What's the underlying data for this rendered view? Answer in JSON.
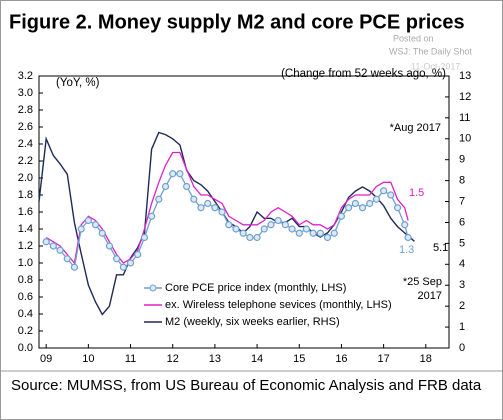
{
  "chart_data": {
    "type": "line",
    "title": "Figure 2. Money supply M2 and core PCE prices",
    "watermark": [
      "Posted on",
      "WSJ: The Daily Shot",
      "11-Oct-2017"
    ],
    "annotations": [
      "(YoY, %)",
      "(Change from 52 weeks ago, %)",
      "*Aug 2017",
      "1.5",
      "1.3",
      "5.1",
      "*25 Sep",
      "2017"
    ],
    "source": "Source: MUMSS, from US Bureau of Economic Analysis and FRB data",
    "xlim": [
      2008.83,
      2018.55
    ],
    "xticks": [
      {
        "value": 2009,
        "label": "09"
      },
      {
        "value": 2010,
        "label": "10"
      },
      {
        "value": 2011,
        "label": "11"
      },
      {
        "value": 2012,
        "label": "12"
      },
      {
        "value": 2013,
        "label": "13"
      },
      {
        "value": 2014,
        "label": "14"
      },
      {
        "value": 2015,
        "label": "15"
      },
      {
        "value": 2016,
        "label": "16"
      },
      {
        "value": 2017,
        "label": "17"
      },
      {
        "value": 2018,
        "label": "18"
      }
    ],
    "ylim": [
      0,
      3.2
    ],
    "yticks": [
      {
        "value": 0,
        "label": "0.0"
      },
      {
        "value": 0.2,
        "label": "0.2"
      },
      {
        "value": 0.4,
        "label": "0.4"
      },
      {
        "value": 0.6,
        "label": "0.6"
      },
      {
        "value": 0.8,
        "label": "0.8"
      },
      {
        "value": 1,
        "label": "1.0"
      },
      {
        "value": 1.2,
        "label": "1.2"
      },
      {
        "value": 1.4,
        "label": "1.4"
      },
      {
        "value": 1.6,
        "label": "1.6"
      },
      {
        "value": 1.8,
        "label": "1.8"
      },
      {
        "value": 2,
        "label": "2.0"
      },
      {
        "value": 2.2,
        "label": "2.2"
      },
      {
        "value": 2.4,
        "label": "2.4"
      },
      {
        "value": 2.6,
        "label": "2.6"
      },
      {
        "value": 2.8,
        "label": "2.8"
      },
      {
        "value": 3,
        "label": "3.0"
      },
      {
        "value": 3.2,
        "label": "3.2"
      }
    ],
    "y2lim": [
      0,
      13
    ],
    "y2ticks": [
      0,
      1,
      2,
      3,
      4,
      5,
      6,
      7,
      8,
      9,
      10,
      11,
      12,
      13
    ],
    "series": [
      {
        "name": "Core PCE price index (monthly, LHS)",
        "color": "#6f9fcf",
        "marker": "circle",
        "x": [
          2009.0,
          2009.17,
          2009.33,
          2009.5,
          2009.67,
          2009.83,
          2010.0,
          2010.17,
          2010.33,
          2010.5,
          2010.67,
          2010.83,
          2011.0,
          2011.17,
          2011.33,
          2011.5,
          2011.67,
          2011.83,
          2012.0,
          2012.17,
          2012.33,
          2012.5,
          2012.67,
          2012.83,
          2013.0,
          2013.17,
          2013.33,
          2013.5,
          2013.67,
          2013.83,
          2014.0,
          2014.17,
          2014.33,
          2014.5,
          2014.67,
          2014.83,
          2015.0,
          2015.17,
          2015.33,
          2015.5,
          2015.67,
          2015.83,
          2016.0,
          2016.17,
          2016.33,
          2016.5,
          2016.67,
          2016.83,
          2017.0,
          2017.17,
          2017.33,
          2017.5,
          2017.58
        ],
        "values": [
          1.25,
          1.2,
          1.15,
          1.05,
          0.95,
          1.4,
          1.5,
          1.45,
          1.35,
          1.2,
          1.05,
          0.95,
          1.0,
          1.1,
          1.3,
          1.55,
          1.75,
          1.9,
          2.05,
          2.05,
          1.9,
          1.75,
          1.65,
          1.7,
          1.65,
          1.6,
          1.45,
          1.4,
          1.35,
          1.3,
          1.3,
          1.4,
          1.45,
          1.5,
          1.45,
          1.4,
          1.35,
          1.4,
          1.35,
          1.35,
          1.3,
          1.35,
          1.55,
          1.65,
          1.7,
          1.65,
          1.7,
          1.75,
          1.85,
          1.8,
          1.65,
          1.45,
          1.3
        ]
      },
      {
        "name": "ex. Wireless telephone sevices (monthly, LHS)",
        "color": "#e020c8",
        "x": [
          2009.0,
          2009.17,
          2009.33,
          2009.5,
          2009.67,
          2009.83,
          2010.0,
          2010.17,
          2010.33,
          2010.5,
          2010.67,
          2010.83,
          2011.0,
          2011.17,
          2011.33,
          2011.5,
          2011.67,
          2011.83,
          2012.0,
          2012.17,
          2012.33,
          2012.5,
          2012.67,
          2012.83,
          2013.0,
          2013.17,
          2013.33,
          2013.5,
          2013.67,
          2013.83,
          2014.0,
          2014.17,
          2014.33,
          2014.5,
          2014.67,
          2014.83,
          2015.0,
          2015.17,
          2015.33,
          2015.5,
          2015.67,
          2015.83,
          2016.0,
          2016.17,
          2016.33,
          2016.5,
          2016.67,
          2016.83,
          2017.0,
          2017.17,
          2017.33,
          2017.5,
          2017.58
        ],
        "values": [
          1.3,
          1.25,
          1.2,
          1.1,
          1.0,
          1.45,
          1.55,
          1.5,
          1.4,
          1.25,
          1.1,
          1.0,
          1.05,
          1.15,
          1.4,
          1.7,
          1.95,
          2.15,
          2.3,
          2.3,
          2.1,
          1.9,
          1.8,
          1.8,
          1.75,
          1.7,
          1.55,
          1.5,
          1.45,
          1.45,
          1.45,
          1.5,
          1.6,
          1.65,
          1.6,
          1.55,
          1.45,
          1.5,
          1.45,
          1.45,
          1.4,
          1.45,
          1.65,
          1.75,
          1.8,
          1.8,
          1.8,
          1.9,
          1.95,
          1.95,
          1.75,
          1.65,
          1.5
        ]
      },
      {
        "name": "M2 (weekly, six weeks earlier, RHS)",
        "color": "#1f2a5a",
        "axis": "y2",
        "x": [
          2008.83,
          2009.0,
          2009.17,
          2009.33,
          2009.5,
          2009.67,
          2009.83,
          2010.0,
          2010.17,
          2010.33,
          2010.5,
          2010.67,
          2010.83,
          2011.0,
          2011.17,
          2011.33,
          2011.5,
          2011.67,
          2011.83,
          2012.0,
          2012.17,
          2012.33,
          2012.5,
          2012.67,
          2012.83,
          2013.0,
          2013.17,
          2013.33,
          2013.5,
          2013.67,
          2013.83,
          2014.0,
          2014.17,
          2014.33,
          2014.5,
          2014.67,
          2014.83,
          2015.0,
          2015.17,
          2015.33,
          2015.5,
          2015.67,
          2015.83,
          2016.0,
          2016.17,
          2016.33,
          2016.5,
          2016.67,
          2016.83,
          2017.0,
          2017.17,
          2017.33,
          2017.5,
          2017.73
        ],
        "values": [
          7.0,
          10.0,
          9.2,
          8.8,
          8.3,
          6.0,
          4.5,
          3.0,
          2.2,
          1.6,
          2.0,
          3.5,
          3.5,
          4.3,
          4.8,
          5.5,
          9.5,
          10.3,
          10.2,
          10.0,
          9.7,
          8.5,
          8.0,
          7.8,
          7.5,
          7.0,
          6.5,
          6.0,
          5.8,
          5.5,
          5.8,
          6.5,
          6.2,
          6.2,
          6.0,
          6.0,
          6.2,
          5.8,
          5.8,
          5.5,
          5.3,
          5.5,
          5.9,
          6.5,
          7.2,
          7.5,
          7.7,
          7.5,
          7.2,
          6.8,
          6.2,
          5.8,
          5.5,
          5.1
        ]
      }
    ]
  }
}
